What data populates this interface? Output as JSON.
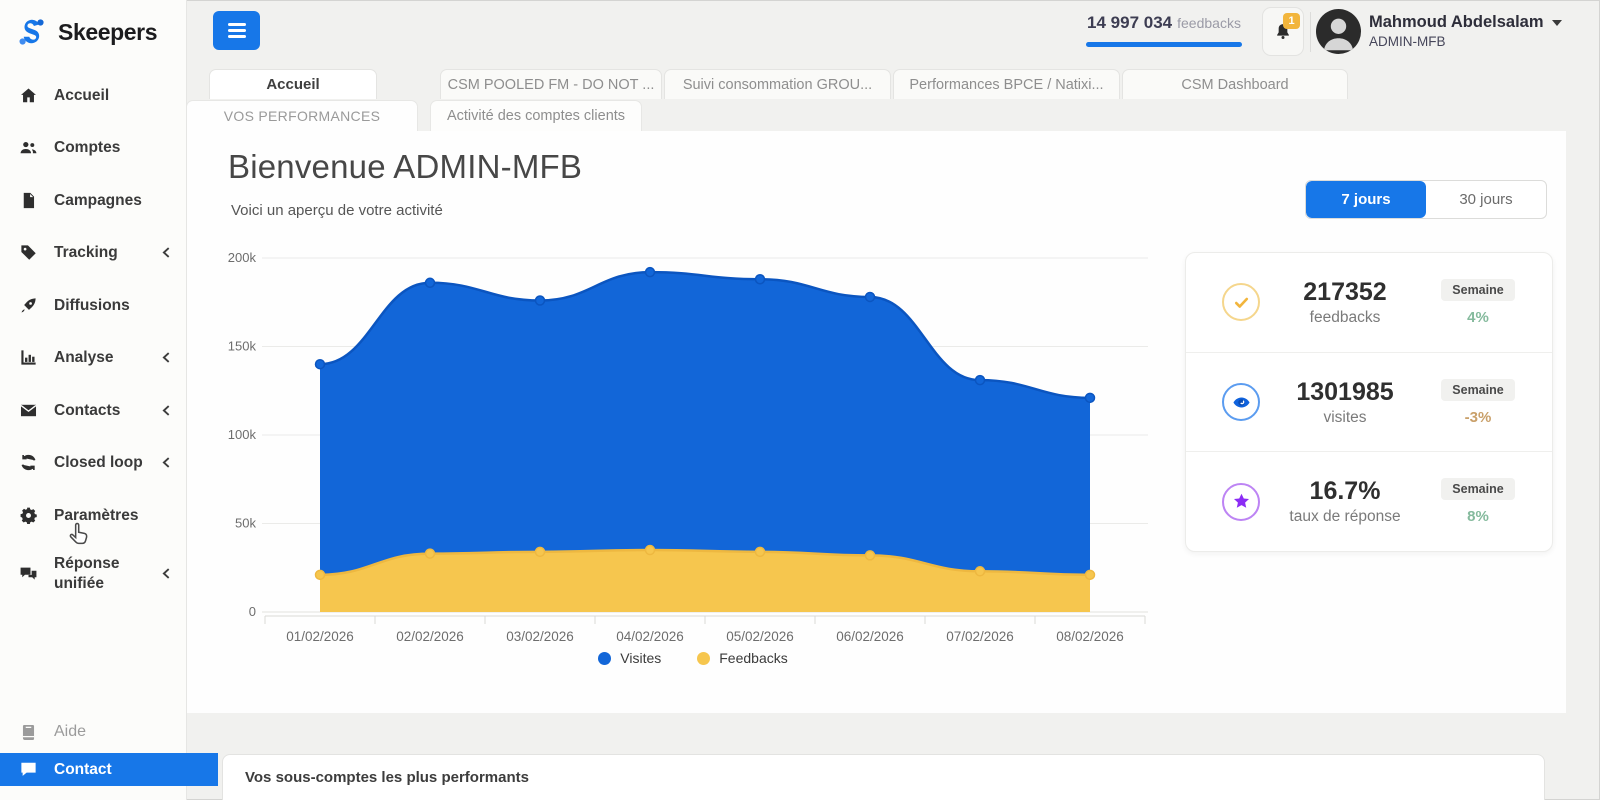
{
  "brand": {
    "name": "Skeepers",
    "accent_blue": "#1777e8"
  },
  "sidebar": {
    "items": [
      {
        "label": "Accueil",
        "icon": "home-icon",
        "chevron": false
      },
      {
        "label": "Comptes",
        "icon": "users-icon",
        "chevron": false
      },
      {
        "label": "Campagnes",
        "icon": "file-icon",
        "chevron": false
      },
      {
        "label": "Tracking",
        "icon": "tag-icon",
        "chevron": true
      },
      {
        "label": "Diffusions",
        "icon": "rocket-icon",
        "chevron": false
      },
      {
        "label": "Analyse",
        "icon": "chart-icon",
        "chevron": true
      },
      {
        "label": "Contacts",
        "icon": "mail-icon",
        "chevron": true
      },
      {
        "label": "Closed loop",
        "icon": "loop-icon",
        "chevron": true
      },
      {
        "label": "Paramètres",
        "icon": "gear-icon",
        "chevron": false
      },
      {
        "label": "Réponse unifiée",
        "icon": "chat-icon",
        "chevron": true
      }
    ],
    "footer_items": [
      {
        "label": "Aide",
        "icon": "book-icon"
      },
      {
        "label": "Contact",
        "icon": "bubble-icon",
        "highlight": "#1777e8"
      }
    ]
  },
  "header": {
    "feedback_counter": {
      "value": "14 997 034",
      "label": "feedbacks"
    },
    "notifications": {
      "badge": "1",
      "badge_color": "#f2b53c"
    },
    "user": {
      "name": "Mahmoud Abdelsalam",
      "role": "ADMIN-MFB"
    }
  },
  "tabs": [
    {
      "label": "Accueil"
    },
    {
      "label": "CSM POOLED FM - DO NOT ..."
    },
    {
      "label": "Suivi consommation GROU..."
    },
    {
      "label": "Performances BPCE / Natixi..."
    },
    {
      "label": "CSM Dashboard"
    }
  ],
  "subtabs": [
    {
      "label": "VOS PERFORMANCES"
    },
    {
      "label": "Activité des comptes clients"
    }
  ],
  "main": {
    "welcome_title": "Bienvenue ADMIN-MFB",
    "welcome_subtitle": "Voici un aperçu de votre activité",
    "period_toggle": {
      "option_active": "7 jours",
      "option_inactive": "30 jours"
    }
  },
  "stats": {
    "rows": [
      {
        "icon": "check-icon",
        "value": "217352",
        "label": "feedbacks",
        "badge": "Semaine",
        "delta": "4%",
        "delta_color": "#85ba9d"
      },
      {
        "icon": "eye-icon",
        "value": "1301985",
        "label": "visites",
        "badge": "Semaine",
        "delta": "-3%",
        "delta_color": "#c9a06a"
      },
      {
        "icon": "star-icon",
        "value": "16.7%",
        "label": "taux de réponse",
        "badge": "Semaine",
        "delta": "8%",
        "delta_color": "#85ba9d"
      }
    ]
  },
  "bottom_card": {
    "title": "Vos sous-comptes les plus performants"
  },
  "chart_data": {
    "type": "area",
    "title": "",
    "x": [
      "01/02/2026",
      "02/02/2026",
      "03/02/2026",
      "04/02/2026",
      "05/02/2026",
      "06/02/2026",
      "07/02/2026",
      "08/02/2026"
    ],
    "series": [
      {
        "name": "Visites",
        "color": "#1266d8",
        "line_color": "#0b55c0",
        "values": [
          140000,
          186000,
          176000,
          192000,
          188000,
          178000,
          131000,
          121000
        ]
      },
      {
        "name": "Feedbacks",
        "color": "#f6c64e",
        "line_color": "#eeb840",
        "values": [
          21000,
          33000,
          34000,
          35000,
          34000,
          32000,
          23000,
          21000
        ]
      }
    ],
    "ylim": [
      0,
      200000
    ],
    "yticks": [
      "0",
      "50k",
      "100k",
      "150k",
      "200k"
    ],
    "grid": true,
    "legend_position": "bottom"
  }
}
